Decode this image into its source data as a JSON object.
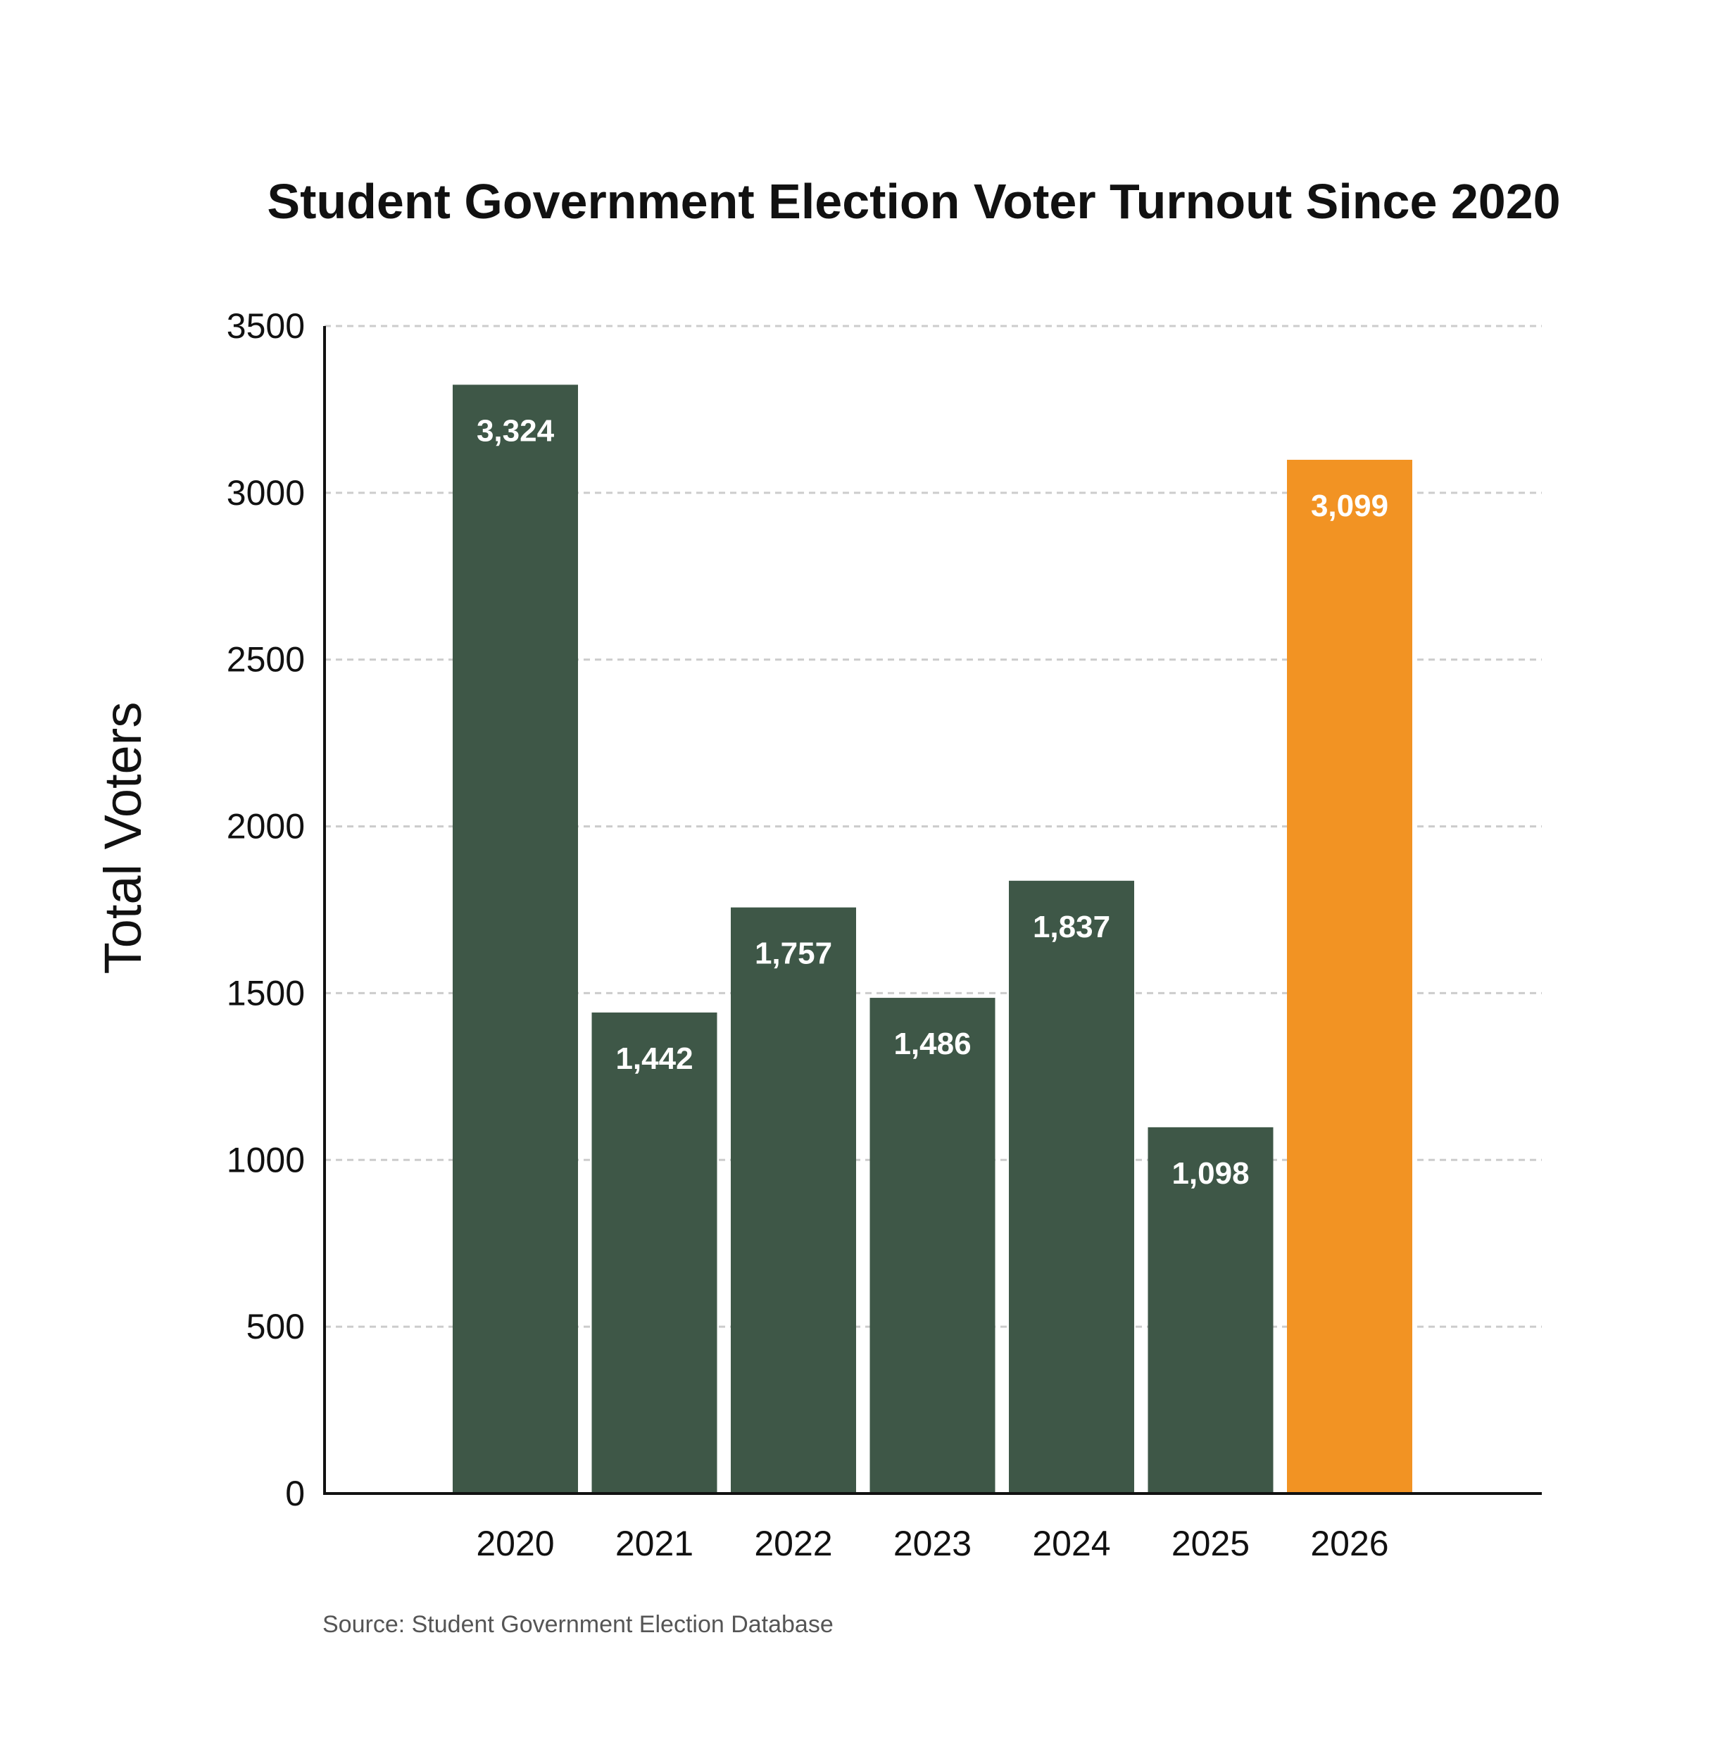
{
  "chart_data": {
    "type": "bar",
    "title": "Student Government Election Voter Turnout Since 2020",
    "xlabel": "",
    "ylabel": "Total Voters",
    "categories": [
      "2020",
      "2021",
      "2022",
      "2023",
      "2024",
      "2025",
      "2026"
    ],
    "values": [
      3324,
      1442,
      1757,
      1486,
      1837,
      1098,
      3099
    ],
    "value_labels": [
      "3,324",
      "1,442",
      "1,757",
      "1,486",
      "1,837",
      "1,098",
      "3,099"
    ],
    "highlight_category": "2026",
    "ylim": [
      0,
      3500
    ],
    "yticks": [
      0,
      500,
      1000,
      1500,
      2000,
      2500,
      3000,
      3500
    ],
    "ytick_labels": [
      "0",
      "500",
      "1000",
      "1500",
      "2000",
      "2500",
      "3000",
      "3500"
    ],
    "grid": true,
    "colors": {
      "bar": "#3e5747",
      "highlight": "#f29323",
      "grid": "#cccccc",
      "axis": "#111111"
    },
    "source": "Source: Student Government Election Database"
  }
}
